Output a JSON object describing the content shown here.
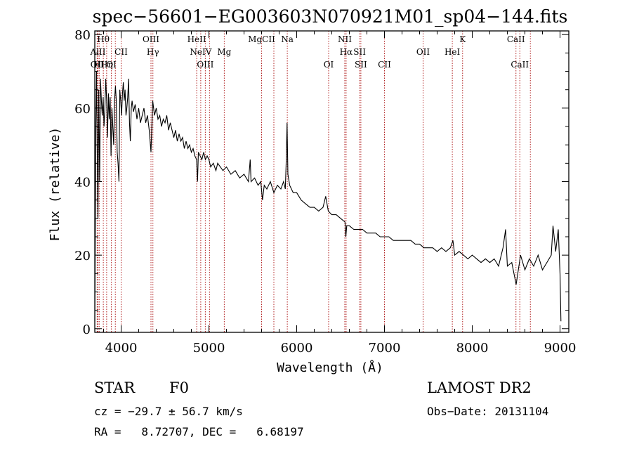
{
  "chart_data": {
    "type": "line",
    "title": "spec−56601−EG003603N070921M01_sp04−144.fits",
    "xlabel": "Wavelength (Å)",
    "ylabel": "Flux (relative)",
    "xlim": [
      3700,
      9100
    ],
    "ylim": [
      -1,
      81
    ],
    "xticks": [
      4000,
      5000,
      6000,
      7000,
      8000,
      9000
    ],
    "yticks": [
      0,
      20,
      40,
      60,
      80
    ],
    "grid": false,
    "series": [
      {
        "points": [
          [
            3700,
            2
          ],
          [
            3712,
            55
          ],
          [
            3720,
            70
          ],
          [
            3728,
            48
          ],
          [
            3736,
            30
          ],
          [
            3745,
            65
          ],
          [
            3755,
            40
          ],
          [
            3765,
            68
          ],
          [
            3775,
            62
          ],
          [
            3785,
            58
          ],
          [
            3795,
            63
          ],
          [
            3805,
            55
          ],
          [
            3815,
            60
          ],
          [
            3825,
            68
          ],
          [
            3835,
            62
          ],
          [
            3845,
            52
          ],
          [
            3855,
            64
          ],
          [
            3865,
            57
          ],
          [
            3875,
            63
          ],
          [
            3885,
            47
          ],
          [
            3895,
            60
          ],
          [
            3905,
            55
          ],
          [
            3915,
            50
          ],
          [
            3925,
            62
          ],
          [
            3935,
            66
          ],
          [
            3945,
            62
          ],
          [
            3955,
            48
          ],
          [
            3965,
            45
          ],
          [
            3975,
            40
          ],
          [
            3985,
            65
          ],
          [
            3995,
            62
          ],
          [
            4005,
            58
          ],
          [
            4015,
            64
          ],
          [
            4025,
            67
          ],
          [
            4035,
            62
          ],
          [
            4045,
            65
          ],
          [
            4055,
            58
          ],
          [
            4065,
            60
          ],
          [
            4075,
            63
          ],
          [
            4085,
            68
          ],
          [
            4095,
            56
          ],
          [
            4105,
            51
          ],
          [
            4115,
            60
          ],
          [
            4125,
            62
          ],
          [
            4140,
            59
          ],
          [
            4160,
            61
          ],
          [
            4180,
            57
          ],
          [
            4200,
            60
          ],
          [
            4220,
            56
          ],
          [
            4240,
            58
          ],
          [
            4260,
            60
          ],
          [
            4280,
            56
          ],
          [
            4300,
            58
          ],
          [
            4320,
            54
          ],
          [
            4340,
            48
          ],
          [
            4360,
            62
          ],
          [
            4380,
            58
          ],
          [
            4400,
            60
          ],
          [
            4420,
            57
          ],
          [
            4440,
            58
          ],
          [
            4460,
            55
          ],
          [
            4480,
            57
          ],
          [
            4500,
            56
          ],
          [
            4520,
            58
          ],
          [
            4540,
            54
          ],
          [
            4560,
            56
          ],
          [
            4580,
            54
          ],
          [
            4600,
            52
          ],
          [
            4620,
            54
          ],
          [
            4640,
            51
          ],
          [
            4660,
            53
          ],
          [
            4680,
            51
          ],
          [
            4700,
            52
          ],
          [
            4720,
            49
          ],
          [
            4740,
            51
          ],
          [
            4760,
            49
          ],
          [
            4780,
            50
          ],
          [
            4800,
            48
          ],
          [
            4820,
            49
          ],
          [
            4840,
            47
          ],
          [
            4860,
            46
          ],
          [
            4870,
            40
          ],
          [
            4880,
            48
          ],
          [
            4900,
            47
          ],
          [
            4920,
            46
          ],
          [
            4940,
            48
          ],
          [
            4960,
            46
          ],
          [
            4980,
            47
          ],
          [
            5000,
            46
          ],
          [
            5020,
            44
          ],
          [
            5050,
            45
          ],
          [
            5080,
            43
          ],
          [
            5100,
            45
          ],
          [
            5130,
            44
          ],
          [
            5160,
            43
          ],
          [
            5200,
            44
          ],
          [
            5250,
            42
          ],
          [
            5300,
            43
          ],
          [
            5350,
            41
          ],
          [
            5400,
            42
          ],
          [
            5450,
            40
          ],
          [
            5470,
            46
          ],
          [
            5480,
            40
          ],
          [
            5520,
            41
          ],
          [
            5560,
            39
          ],
          [
            5590,
            40
          ],
          [
            5610,
            35
          ],
          [
            5630,
            39
          ],
          [
            5660,
            38
          ],
          [
            5700,
            40
          ],
          [
            5740,
            37
          ],
          [
            5780,
            39
          ],
          [
            5820,
            38
          ],
          [
            5850,
            40
          ],
          [
            5870,
            38
          ],
          [
            5880,
            45
          ],
          [
            5890,
            56
          ],
          [
            5900,
            42
          ],
          [
            5920,
            39
          ],
          [
            5960,
            37
          ],
          [
            6000,
            37
          ],
          [
            6050,
            35
          ],
          [
            6100,
            34
          ],
          [
            6150,
            33
          ],
          [
            6200,
            33
          ],
          [
            6250,
            32
          ],
          [
            6300,
            33
          ],
          [
            6330,
            36
          ],
          [
            6360,
            32
          ],
          [
            6400,
            31
          ],
          [
            6450,
            31
          ],
          [
            6500,
            30
          ],
          [
            6550,
            29
          ],
          [
            6560,
            25
          ],
          [
            6570,
            28
          ],
          [
            6600,
            28
          ],
          [
            6650,
            27
          ],
          [
            6700,
            27
          ],
          [
            6750,
            27
          ],
          [
            6800,
            26
          ],
          [
            6850,
            26
          ],
          [
            6900,
            26
          ],
          [
            6950,
            25
          ],
          [
            7000,
            25
          ],
          [
            7050,
            25
          ],
          [
            7100,
            24
          ],
          [
            7150,
            24
          ],
          [
            7200,
            24
          ],
          [
            7250,
            24
          ],
          [
            7300,
            24
          ],
          [
            7350,
            23
          ],
          [
            7400,
            23
          ],
          [
            7450,
            22
          ],
          [
            7500,
            22
          ],
          [
            7550,
            22
          ],
          [
            7600,
            21
          ],
          [
            7650,
            22
          ],
          [
            7700,
            21
          ],
          [
            7750,
            22
          ],
          [
            7780,
            24
          ],
          [
            7800,
            20
          ],
          [
            7850,
            21
          ],
          [
            7900,
            20
          ],
          [
            7950,
            19
          ],
          [
            8000,
            20
          ],
          [
            8050,
            19
          ],
          [
            8100,
            18
          ],
          [
            8150,
            19
          ],
          [
            8200,
            18
          ],
          [
            8250,
            19
          ],
          [
            8300,
            17
          ],
          [
            8350,
            22
          ],
          [
            8380,
            27
          ],
          [
            8400,
            17
          ],
          [
            8450,
            18
          ],
          [
            8500,
            12
          ],
          [
            8550,
            20
          ],
          [
            8600,
            16
          ],
          [
            8650,
            19
          ],
          [
            8700,
            17
          ],
          [
            8750,
            20
          ],
          [
            8800,
            16
          ],
          [
            8850,
            18
          ],
          [
            8900,
            20
          ],
          [
            8920,
            28
          ],
          [
            8950,
            21
          ],
          [
            8980,
            27
          ],
          [
            9000,
            15
          ],
          [
            9010,
            2
          ]
        ]
      }
    ],
    "lines": [
      {
        "x": 3727,
        "label": "OII",
        "row": 2
      },
      {
        "x": 3736,
        "label": "AlII",
        "row": 1
      },
      {
        "x": 3750,
        "label": "HI",
        "row": 2
      },
      {
        "x": 3797,
        "label": "Hθ",
        "row": 0
      },
      {
        "x": 3835,
        "label": "Hη",
        "row": 2
      },
      {
        "x": 3889,
        "label": "OI",
        "row": 2
      },
      {
        "x": 3934,
        "label": "",
        "row": 0
      },
      {
        "x": 4000,
        "label": "CII",
        "row": 1
      },
      {
        "x": 4340,
        "label": "OIII",
        "row": 0
      },
      {
        "x": 4362,
        "label": "Hγ",
        "row": 1
      },
      {
        "x": 4861,
        "label": "HeII",
        "row": 0
      },
      {
        "x": 4907,
        "label": "NeIV",
        "row": 1
      },
      {
        "x": 4959,
        "label": "OIII",
        "row": 2
      },
      {
        "x": 5007,
        "label": "",
        "row": 0
      },
      {
        "x": 5175,
        "label": "Mg",
        "row": 1
      },
      {
        "x": 5600,
        "label": "MgCII",
        "row": 0
      },
      {
        "x": 5740,
        "label": "",
        "row": 0
      },
      {
        "x": 5893,
        "label": "Na",
        "row": 0
      },
      {
        "x": 6364,
        "label": "OI",
        "row": 2
      },
      {
        "x": 6548,
        "label": "NII",
        "row": 0
      },
      {
        "x": 6563,
        "label": "Hα",
        "row": 1
      },
      {
        "x": 6717,
        "label": "SII",
        "row": 1
      },
      {
        "x": 6731,
        "label": "SII",
        "row": 2
      },
      {
        "x": 7000,
        "label": "CII",
        "row": 2
      },
      {
        "x": 7440,
        "label": "OII",
        "row": 1
      },
      {
        "x": 7773,
        "label": "HeI",
        "row": 1
      },
      {
        "x": 7890,
        "label": "K",
        "row": 0
      },
      {
        "x": 8498,
        "label": "CaII",
        "row": 0
      },
      {
        "x": 8542,
        "label": "CaII",
        "row": 2
      },
      {
        "x": 8662,
        "label": "",
        "row": 0
      }
    ]
  },
  "info": {
    "object_class": "STAR",
    "subclass": "F0",
    "survey": "LAMOST DR2",
    "cz": "cz = −29.7 ± 56.7 km/s",
    "obs_date": "Obs−Date: 20131104",
    "coords": "RA =   8.72707, DEC =   6.68197"
  }
}
